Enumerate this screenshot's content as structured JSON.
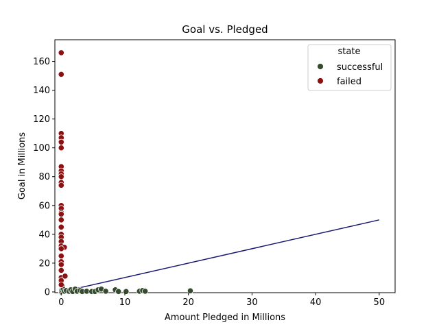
{
  "chart_data": {
    "type": "scatter",
    "title": "Goal vs. Pledged",
    "xlabel": "Amount Pledged in Millions",
    "ylabel": "Goal in Millions",
    "xlim": [
      -1.0,
      52.5
    ],
    "ylim": [
      -0.5,
      175
    ],
    "xticks": [
      0,
      10,
      20,
      30,
      40,
      50
    ],
    "yticks": [
      0,
      20,
      40,
      60,
      80,
      100,
      120,
      140,
      160
    ],
    "legend": {
      "title": "state",
      "placement": "top-right",
      "entries": [
        {
          "label": "successful",
          "color": "#354a2f"
        },
        {
          "label": "failed",
          "color": "#8b1212"
        }
      ]
    },
    "series": [
      {
        "name": "successful",
        "color": "#354a2f",
        "points": [
          [
            0.0,
            0.0
          ],
          [
            0.05,
            0.5
          ],
          [
            0.1,
            1.5
          ],
          [
            0.2,
            3.0
          ],
          [
            0.15,
            4.5
          ],
          [
            0.0,
            6.0
          ],
          [
            0.3,
            2.0
          ],
          [
            0.5,
            0.5
          ],
          [
            0.8,
            1.0
          ],
          [
            1.2,
            0.5
          ],
          [
            1.5,
            1.5
          ],
          [
            1.8,
            0.3
          ],
          [
            2.2,
            2.0
          ],
          [
            2.5,
            0.5
          ],
          [
            3.0,
            1.0
          ],
          [
            3.3,
            0.3
          ],
          [
            4.0,
            0.5
          ],
          [
            4.8,
            0.3
          ],
          [
            5.3,
            0.3
          ],
          [
            5.8,
            1.5
          ],
          [
            6.3,
            2.0
          ],
          [
            7.0,
            0.5
          ],
          [
            8.5,
            1.5
          ],
          [
            9.0,
            0.3
          ],
          [
            10.2,
            0.3
          ],
          [
            12.3,
            0.5
          ],
          [
            12.8,
            1.0
          ],
          [
            13.2,
            0.5
          ],
          [
            20.3,
            0.8
          ]
        ]
      },
      {
        "name": "failed",
        "color": "#8b1212",
        "points": [
          [
            0.0,
            166
          ],
          [
            0.0,
            151
          ],
          [
            0.0,
            110
          ],
          [
            0.0,
            107
          ],
          [
            0.0,
            104
          ],
          [
            0.0,
            100
          ],
          [
            0.0,
            87
          ],
          [
            0.0,
            84
          ],
          [
            0.0,
            82
          ],
          [
            0.0,
            80
          ],
          [
            0.0,
            76
          ],
          [
            0.0,
            74
          ],
          [
            0.0,
            60
          ],
          [
            0.0,
            58
          ],
          [
            0.0,
            55
          ],
          [
            0.0,
            54
          ],
          [
            0.0,
            50
          ],
          [
            0.0,
            45
          ],
          [
            0.0,
            40
          ],
          [
            0.0,
            38
          ],
          [
            0.0,
            35
          ],
          [
            0.0,
            32
          ],
          [
            0.5,
            31
          ],
          [
            0.0,
            30
          ],
          [
            0.0,
            25
          ],
          [
            0.0,
            21
          ],
          [
            0.0,
            19
          ],
          [
            0.0,
            15
          ],
          [
            0.0,
            10
          ],
          [
            0.6,
            11
          ],
          [
            0.0,
            8
          ],
          [
            0.0,
            5
          ]
        ]
      }
    ],
    "trend_line": {
      "color": "#191970",
      "from": [
        0,
        0
      ],
      "to": [
        50,
        50
      ]
    }
  }
}
